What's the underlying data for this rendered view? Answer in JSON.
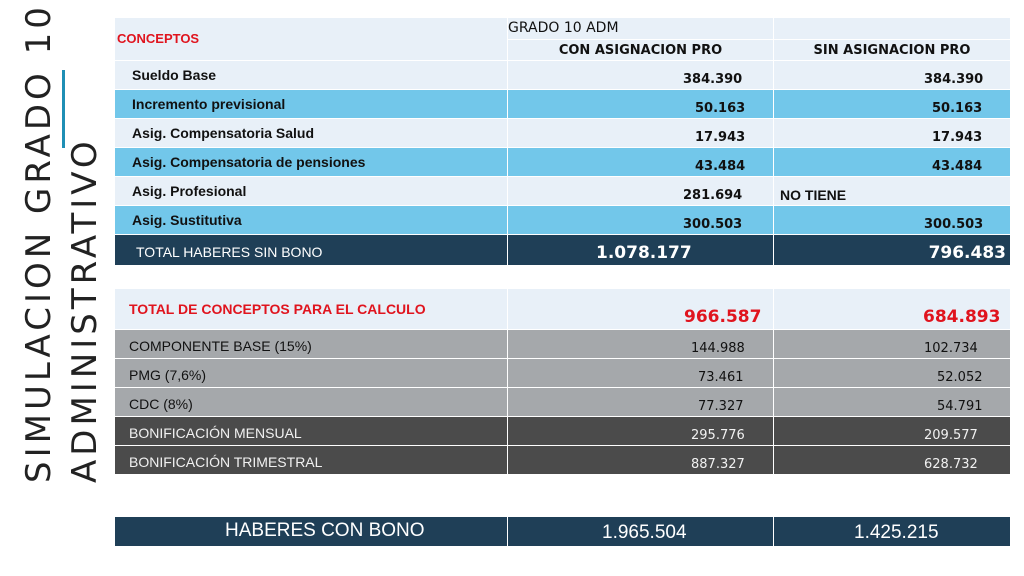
{
  "side_title": {
    "line1": "SIMULACION GRADO 10",
    "line2": "ADMINISTRATIVO"
  },
  "header": {
    "conceptos": "CONCEPTOS",
    "grado": "GRADO 10 ADM",
    "col_con": "CON ASIGNACION PRO",
    "col_sin": "SIN ASIGNACION PRO"
  },
  "rows": [
    {
      "label": "Sueldo Base",
      "con": "384.390",
      "sin": "384.390"
    },
    {
      "label": "Incremento previsional",
      "con": "50.163",
      "sin": "50.163"
    },
    {
      "label": "Asig. Compensatoria Salud",
      "con": "17.943",
      "sin": "17.943"
    },
    {
      "label": "Asig. Compensatoria de pensiones",
      "con": "43.484",
      "sin": "43.484"
    },
    {
      "label": "Asig. Profesional",
      "con": "281.694",
      "sin": "NO TIENE"
    },
    {
      "label": "Asig. Sustitutiva",
      "con": "300.503",
      "sin": "300.503"
    }
  ],
  "total_sin_bono": {
    "label": "TOTAL HABERES SIN BONO",
    "con": "1.078.177",
    "sin": "796.483"
  },
  "total_conceptos": {
    "label": "TOTAL DE CONCEPTOS PARA EL CALCULO",
    "con": "966.587",
    "sin": "684.893"
  },
  "calc_rows": [
    {
      "label": "COMPONENTE BASE (15%)",
      "con": "144.988",
      "sin": "102.734"
    },
    {
      "label": "PMG (7,6%)",
      "con": "73.461",
      "sin": "52.052"
    },
    {
      "label": "CDC (8%)",
      "con": "77.327",
      "sin": "54.791"
    },
    {
      "label": "BONIFICACIÓN MENSUAL",
      "con": "295.776",
      "sin": "209.577"
    },
    {
      "label": "BONIFICACIÓN TRIMESTRAL",
      "con": "887.327",
      "sin": "628.732"
    }
  ],
  "haberes_con_bono": {
    "label": "HABERES CON BONO",
    "con": "1.965.504",
    "sin": "1.425.215"
  }
}
